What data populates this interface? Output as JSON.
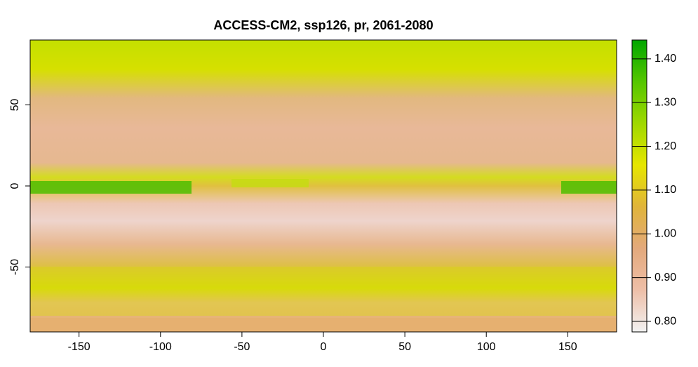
{
  "chart_data": {
    "type": "map",
    "title": "ACCESS-CM2, ssp126, pr, 2061-2080",
    "xlim": [
      -180,
      180
    ],
    "ylim": [
      -90,
      90
    ],
    "xticks": [
      -150,
      -100,
      -50,
      0,
      50,
      100,
      150
    ],
    "yticks": [
      -50,
      0,
      50
    ],
    "colorbar": {
      "lim": [
        0.776,
        1.443
      ],
      "ticks": [
        {
          "value": 0.8,
          "label": "0.80"
        },
        {
          "value": 0.9,
          "label": "0.90"
        },
        {
          "value": 1.0,
          "label": "1.00"
        },
        {
          "value": 1.1,
          "label": "1.10"
        },
        {
          "value": 1.2,
          "label": "1.20"
        },
        {
          "value": 1.3,
          "label": "1.30"
        },
        {
          "value": 1.4,
          "label": "1.40"
        }
      ],
      "colors": [
        "#f2f2f2",
        "#eebfa8",
        "#e3a97c",
        "#e0b43a",
        "#e6e600",
        "#9fd800",
        "#55c600",
        "#00a600"
      ]
    }
  }
}
